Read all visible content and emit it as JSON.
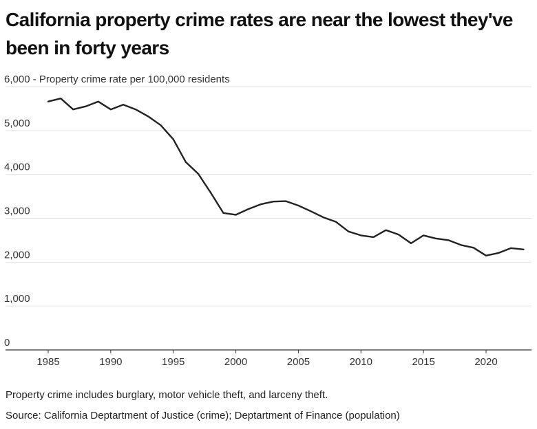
{
  "chart_data": {
    "type": "line",
    "title": "California property crime rates are near the lowest they've been in forty years",
    "ylabel": "Property crime rate per 100,000 residents",
    "ylim": [
      0,
      6000
    ],
    "y_ticks": [
      "0",
      "1,000",
      "2,000",
      "3,000",
      "4,000",
      "5,000",
      "6,000"
    ],
    "y_tick_values": [
      0,
      1000,
      2000,
      3000,
      4000,
      5000,
      6000
    ],
    "x_ticks": [
      "1985",
      "1990",
      "1995",
      "2000",
      "2005",
      "2010",
      "2015",
      "2020"
    ],
    "x_tick_values": [
      1985,
      1990,
      1995,
      2000,
      2005,
      2010,
      2015,
      2020
    ],
    "xlim": [
      1983.9,
      2025.2
    ],
    "grid": "horizontal",
    "line_color": "#222222",
    "x": [
      1985,
      1986,
      1987,
      1988,
      1989,
      1990,
      1991,
      1992,
      1993,
      1994,
      1995,
      1996,
      1997,
      1998,
      1999,
      2000,
      2001,
      2002,
      2003,
      2004,
      2005,
      2006,
      2007,
      2008,
      2009,
      2010,
      2011,
      2012,
      2013,
      2014,
      2015,
      2016,
      2017,
      2018,
      2019,
      2020,
      2021,
      2022,
      2023
    ],
    "series": [
      {
        "values": [
          5660,
          5730,
          5480,
          5550,
          5660,
          5480,
          5590,
          5480,
          5320,
          5120,
          4800,
          4280,
          4010,
          3580,
          3120,
          3080,
          3210,
          3320,
          3380,
          3390,
          3290,
          3160,
          3020,
          2920,
          2700,
          2610,
          2570,
          2730,
          2630,
          2430,
          2610,
          2540,
          2500,
          2390,
          2330,
          2150,
          2210,
          2320,
          2290
        ]
      }
    ],
    "notes": [
      "Property crime includes burglary, motor vehicle theft, and larceny theft.",
      "Source: California Deptartment of Justice (crime); Deptartment of Finance (population)"
    ]
  }
}
